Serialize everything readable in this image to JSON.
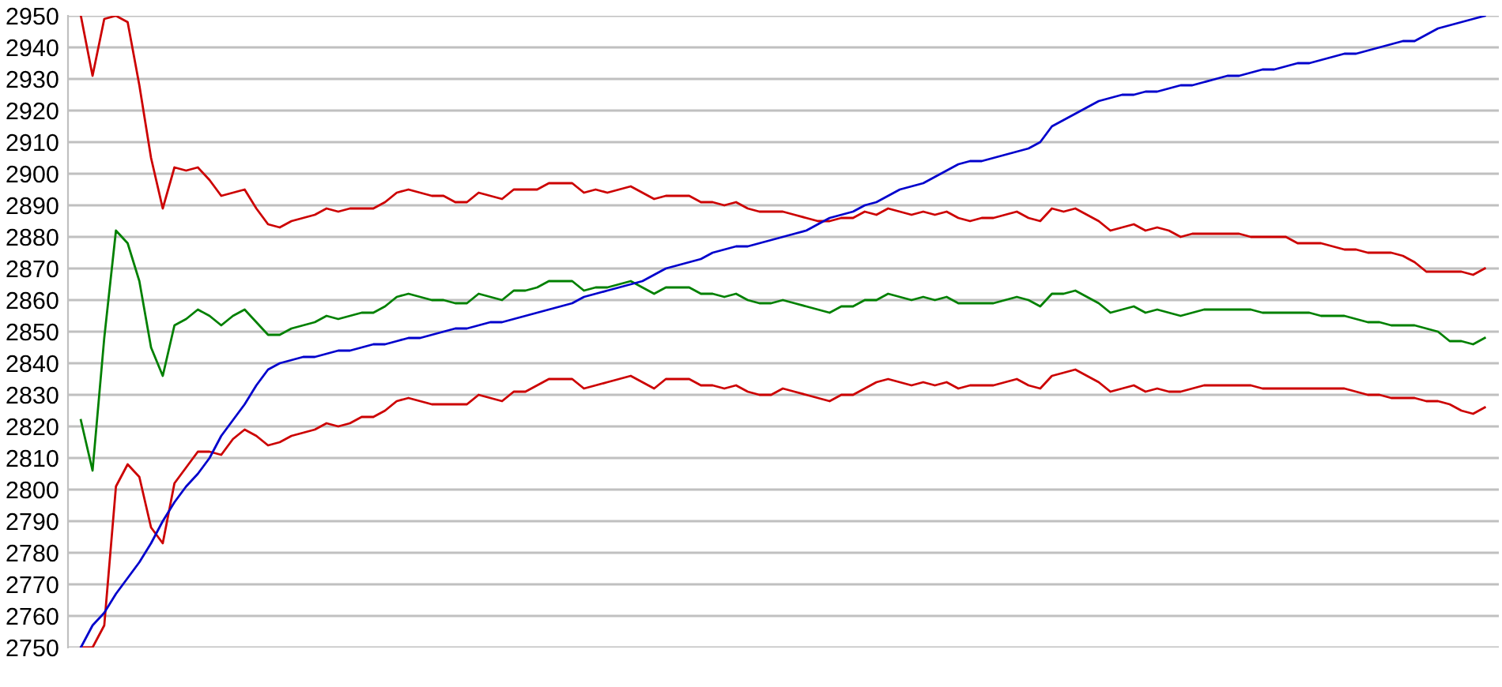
{
  "chart_data": {
    "type": "line",
    "categories": [
      null,
      null,
      null,
      null,
      null,
      null,
      null,
      null,
      null,
      null,
      null,
      null,
      null,
      null,
      null,
      null,
      null,
      null,
      null,
      null,
      null,
      null,
      null,
      null,
      null,
      null,
      null,
      null,
      null,
      null,
      null,
      null,
      null,
      null,
      null,
      null,
      null,
      null,
      null,
      null,
      null,
      null,
      null,
      null,
      null,
      null,
      null,
      null,
      null,
      null,
      null,
      null,
      null,
      null,
      null,
      null,
      null,
      null,
      null,
      null,
      null,
      null,
      null,
      null,
      null,
      null,
      null,
      null,
      null,
      null,
      null,
      null,
      null,
      null,
      null,
      null,
      null,
      null,
      null,
      null,
      null,
      null,
      null,
      null,
      null,
      null,
      null,
      null,
      null,
      null,
      null,
      null,
      null,
      null,
      null,
      null,
      null,
      null,
      null,
      null,
      null,
      null,
      null,
      null,
      null,
      null,
      null,
      null,
      null,
      null,
      null,
      null,
      null,
      null,
      null,
      null,
      null,
      null,
      null,
      null,
      null
    ],
    "series": [
      {
        "color": "#cc0000",
        "values": [
          2950,
          2931,
          2949,
          2950,
          2948,
          2928,
          2905,
          2889,
          2902,
          2901,
          2902,
          2898,
          2893,
          2894,
          2895,
          2889,
          2884,
          2883,
          2885,
          2886,
          2887,
          2889,
          2888,
          2889,
          2889,
          2889,
          2891,
          2894,
          2895,
          2894,
          2893,
          2893,
          2891,
          2891,
          2894,
          2893,
          2892,
          2895,
          2895,
          2895,
          2897,
          2897,
          2897,
          2894,
          2895,
          2894,
          2895,
          2896,
          2894,
          2892,
          2893,
          2893,
          2893,
          2891,
          2891,
          2890,
          2891,
          2889,
          2888,
          2888,
          2888,
          2887,
          2886,
          2885,
          2885,
          2886,
          2886,
          2888,
          2887,
          2889,
          2888,
          2887,
          2888,
          2887,
          2888,
          2886,
          2885,
          2886,
          2886,
          2887,
          2888,
          2886,
          2885,
          2889,
          2888,
          2889,
          2887,
          2885,
          2882,
          2883,
          2884,
          2882,
          2883,
          2882,
          2880,
          2881,
          2881,
          2881,
          2881,
          2881,
          2880,
          2880,
          2880,
          2880,
          2878,
          2878,
          2878,
          2877,
          2876,
          2876,
          2875,
          2875,
          2875,
          2874,
          2872,
          2869,
          2869,
          2869,
          2869,
          2868,
          2870
        ]
      },
      {
        "color": "#008000",
        "values": [
          2822,
          2806,
          2848,
          2882,
          2878,
          2866,
          2845,
          2836,
          2852,
          2854,
          2857,
          2855,
          2852,
          2855,
          2857,
          2853,
          2849,
          2849,
          2851,
          2852,
          2853,
          2855,
          2854,
          2855,
          2856,
          2856,
          2858,
          2861,
          2862,
          2861,
          2860,
          2860,
          2859,
          2859,
          2862,
          2861,
          2860,
          2863,
          2863,
          2864,
          2866,
          2866,
          2866,
          2863,
          2864,
          2864,
          2865,
          2866,
          2864,
          2862,
          2864,
          2864,
          2864,
          2862,
          2862,
          2861,
          2862,
          2860,
          2859,
          2859,
          2860,
          2859,
          2858,
          2857,
          2856,
          2858,
          2858,
          2860,
          2860,
          2862,
          2861,
          2860,
          2861,
          2860,
          2861,
          2859,
          2859,
          2859,
          2859,
          2860,
          2861,
          2860,
          2858,
          2862,
          2862,
          2863,
          2861,
          2859,
          2856,
          2857,
          2858,
          2856,
          2857,
          2856,
          2855,
          2856,
          2857,
          2857,
          2857,
          2857,
          2857,
          2856,
          2856,
          2856,
          2856,
          2856,
          2855,
          2855,
          2855,
          2854,
          2853,
          2853,
          2852,
          2852,
          2852,
          2851,
          2850,
          2847,
          2847,
          2846,
          2848
        ]
      },
      {
        "color": "#cc0000",
        "values": [
          2750,
          2750,
          2757,
          2801,
          2808,
          2804,
          2788,
          2783,
          2802,
          2807,
          2812,
          2812,
          2811,
          2816,
          2819,
          2817,
          2814,
          2815,
          2817,
          2818,
          2819,
          2821,
          2820,
          2821,
          2823,
          2823,
          2825,
          2828,
          2829,
          2828,
          2827,
          2827,
          2827,
          2827,
          2830,
          2829,
          2828,
          2831,
          2831,
          2833,
          2835,
          2835,
          2835,
          2832,
          2833,
          2834,
          2835,
          2836,
          2834,
          2832,
          2835,
          2835,
          2835,
          2833,
          2833,
          2832,
          2833,
          2831,
          2830,
          2830,
          2832,
          2831,
          2830,
          2829,
          2828,
          2830,
          2830,
          2832,
          2834,
          2835,
          2834,
          2833,
          2834,
          2833,
          2834,
          2832,
          2833,
          2833,
          2833,
          2834,
          2835,
          2833,
          2832,
          2836,
          2837,
          2838,
          2836,
          2834,
          2831,
          2832,
          2833,
          2831,
          2832,
          2831,
          2831,
          2832,
          2833,
          2833,
          2833,
          2833,
          2833,
          2832,
          2832,
          2832,
          2832,
          2832,
          2832,
          2832,
          2832,
          2831,
          2830,
          2830,
          2829,
          2829,
          2829,
          2828,
          2828,
          2827,
          2825,
          2824,
          2826
        ]
      },
      {
        "color": "#0000cc",
        "values": [
          2750,
          2757,
          2761,
          2767,
          2772,
          2777,
          2783,
          2790,
          2796,
          2801,
          2805,
          2810,
          2817,
          2822,
          2827,
          2833,
          2838,
          2840,
          2841,
          2842,
          2842,
          2843,
          2844,
          2844,
          2845,
          2846,
          2846,
          2847,
          2848,
          2848,
          2849,
          2850,
          2851,
          2851,
          2852,
          2853,
          2853,
          2854,
          2855,
          2856,
          2857,
          2858,
          2859,
          2861,
          2862,
          2863,
          2864,
          2865,
          2866,
          2868,
          2870,
          2871,
          2872,
          2873,
          2875,
          2876,
          2877,
          2877,
          2878,
          2879,
          2880,
          2881,
          2882,
          2884,
          2886,
          2887,
          2888,
          2890,
          2891,
          2893,
          2895,
          2896,
          2897,
          2899,
          2901,
          2903,
          2904,
          2904,
          2905,
          2906,
          2907,
          2908,
          2910,
          2915,
          2917,
          2919,
          2921,
          2923,
          2924,
          2925,
          2925,
          2926,
          2926,
          2927,
          2928,
          2928,
          2929,
          2930,
          2931,
          2931,
          2932,
          2933,
          2933,
          2934,
          2935,
          2935,
          2936,
          2937,
          2938,
          2938,
          2939,
          2940,
          2941,
          2942,
          2942,
          2944,
          2946,
          2947,
          2948,
          2949,
          2950
        ]
      }
    ],
    "ylim": [
      2750,
      2950
    ],
    "yticks": [
      2750,
      2760,
      2770,
      2780,
      2790,
      2800,
      2810,
      2820,
      2830,
      2840,
      2850,
      2860,
      2870,
      2880,
      2890,
      2900,
      2910,
      2920,
      2930,
      2940,
      2950
    ],
    "grid": "y",
    "tick_labels": "y",
    "legend": false
  }
}
